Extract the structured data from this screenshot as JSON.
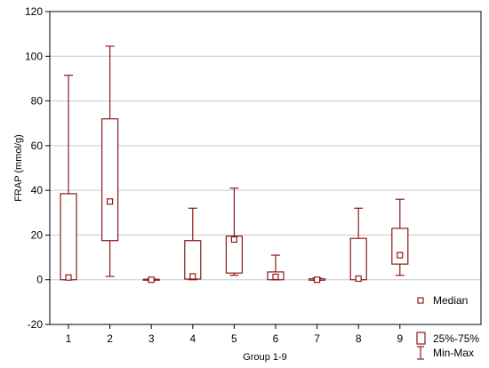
{
  "chart_data": {
    "type": "box",
    "xlabel": "Group 1-9",
    "ylabel": "FRAP (mmol/g)",
    "ylim": [
      -20,
      120
    ],
    "yticks": [
      -20,
      0,
      20,
      40,
      60,
      80,
      100,
      120
    ],
    "grid": "horizontal",
    "legend_position": "bottom-right",
    "legend": [
      "Median",
      "25%-75%",
      "Min-Max"
    ],
    "color": "#8b1a1a",
    "categories": [
      "1",
      "2",
      "3",
      "4",
      "5",
      "6",
      "7",
      "8",
      "9"
    ],
    "boxes": [
      {
        "min": 0.0,
        "q1": 0.0,
        "median": 1.0,
        "q3": 38.5,
        "max": 91.5
      },
      {
        "min": 1.5,
        "q1": 17.5,
        "median": 35.0,
        "q3": 72.0,
        "max": 104.5
      },
      {
        "min": -0.3,
        "q1": -0.2,
        "median": 0.0,
        "q3": 0.2,
        "max": 0.4
      },
      {
        "min": 0.0,
        "q1": 0.3,
        "median": 1.5,
        "q3": 17.5,
        "max": 32.0
      },
      {
        "min": 2.0,
        "q1": 3.0,
        "median": 18.0,
        "q3": 19.5,
        "max": 41.0
      },
      {
        "min": 0.0,
        "q1": 0.0,
        "median": 1.3,
        "q3": 3.5,
        "max": 11.0
      },
      {
        "min": -0.3,
        "q1": -0.2,
        "median": 0.0,
        "q3": 0.4,
        "max": 0.8
      },
      {
        "min": 0.0,
        "q1": 0.0,
        "median": 0.5,
        "q3": 18.5,
        "max": 32.0
      },
      {
        "min": 2.0,
        "q1": 7.0,
        "median": 11.0,
        "q3": 23.0,
        "max": 36.0
      }
    ]
  }
}
